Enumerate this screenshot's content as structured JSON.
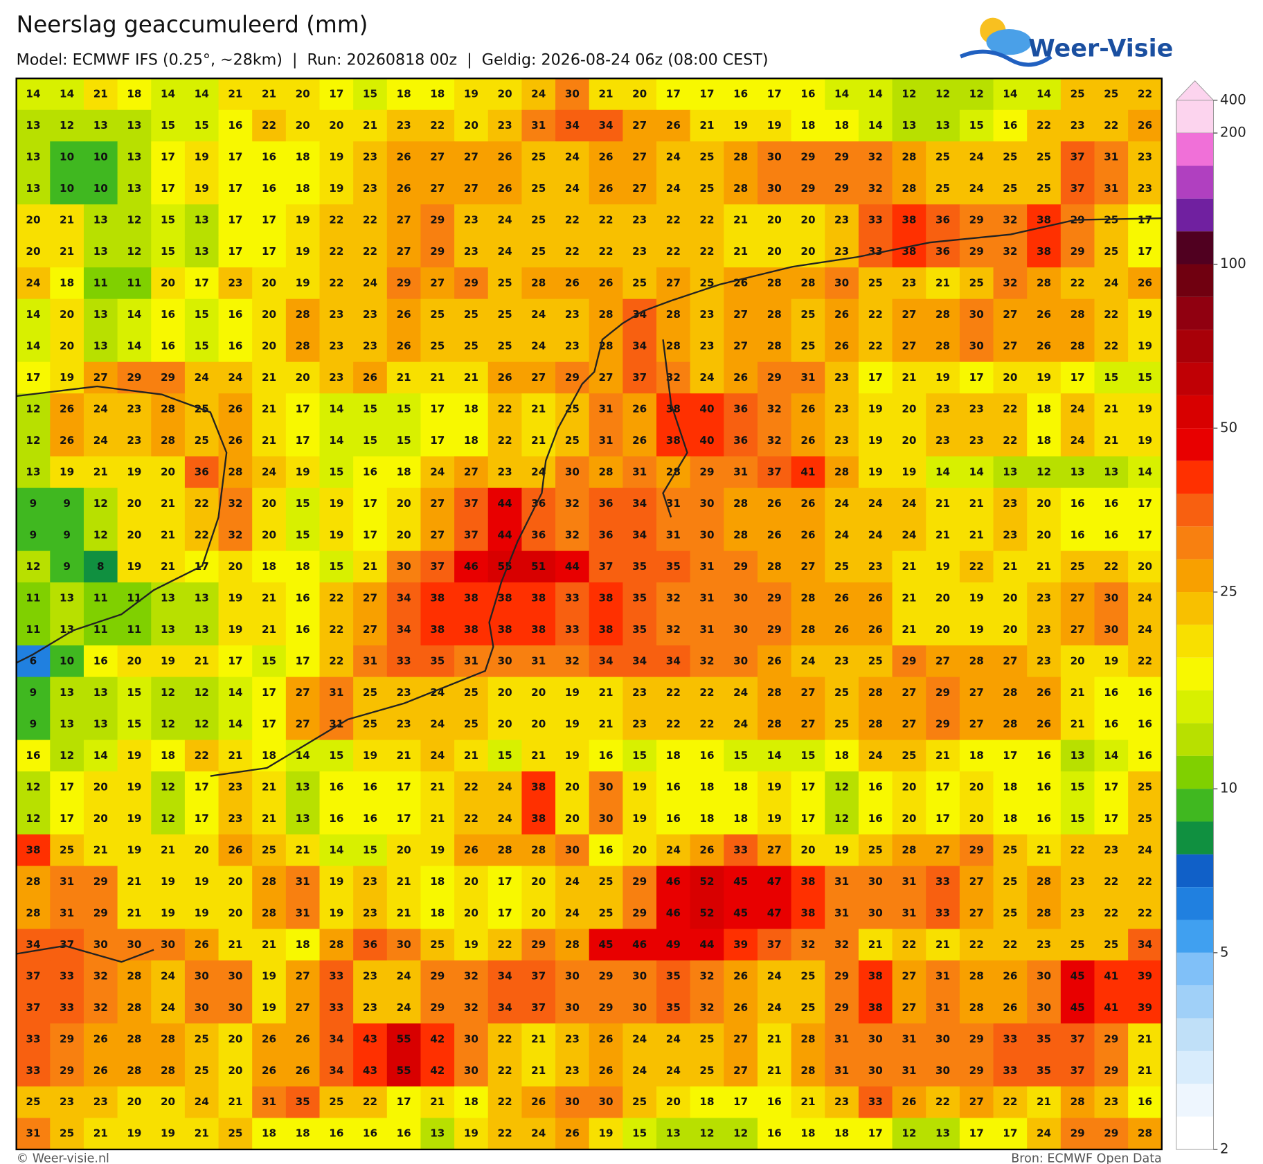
{
  "header": {
    "title": "Neerslag geaccumuleerd (mm)",
    "subtitle": "Model: ECMWF IFS (0.25°, ~28km)  |  Run: 20260818 00z  |  Geldig: 2026-08-24 06z (08:00 CEST)",
    "logo": "Weer-Visie"
  },
  "map": {
    "type": "value-grid",
    "grid": [
      [
        14,
        14,
        21,
        18,
        14,
        14,
        21,
        21,
        20,
        17,
        15,
        18,
        18,
        19,
        20,
        24,
        30,
        21,
        20,
        17,
        17,
        16,
        17,
        16,
        14,
        14,
        12,
        12,
        12,
        14,
        14,
        25,
        25,
        22
      ],
      [
        13,
        12,
        13,
        13,
        15,
        15,
        16,
        22,
        20,
        20,
        21,
        23,
        22,
        20,
        23,
        31,
        34,
        34,
        27,
        26,
        21,
        19,
        19,
        18,
        18,
        14,
        13,
        13,
        15,
        16,
        22,
        23,
        22,
        26
      ],
      [
        13,
        10,
        10,
        13,
        17,
        19,
        17,
        16,
        18,
        19,
        23,
        26,
        27,
        27,
        26,
        25,
        24,
        26,
        27,
        24,
        25,
        28,
        30,
        29,
        29,
        32,
        28,
        25,
        24,
        25,
        25,
        37,
        31,
        23
      ],
      [
        13,
        10,
        10,
        13,
        17,
        19,
        17,
        16,
        18,
        19,
        23,
        26,
        27,
        27,
        26,
        25,
        24,
        26,
        27,
        24,
        25,
        28,
        30,
        29,
        29,
        32,
        28,
        25,
        24,
        25,
        25,
        37,
        31,
        23
      ],
      [
        20,
        21,
        13,
        12,
        15,
        13,
        17,
        17,
        19,
        22,
        22,
        27,
        29,
        23,
        24,
        25,
        22,
        22,
        23,
        22,
        22,
        21,
        20,
        20,
        23,
        33,
        38,
        36,
        29,
        32,
        38,
        29,
        25,
        17
      ],
      [
        20,
        21,
        13,
        12,
        15,
        13,
        17,
        17,
        19,
        22,
        22,
        27,
        29,
        23,
        24,
        25,
        22,
        22,
        23,
        22,
        22,
        21,
        20,
        20,
        23,
        33,
        38,
        36,
        29,
        32,
        38,
        29,
        25,
        17
      ],
      [
        24,
        18,
        11,
        11,
        20,
        17,
        23,
        20,
        19,
        22,
        24,
        29,
        27,
        29,
        25,
        28,
        26,
        26,
        25,
        27,
        25,
        26,
        28,
        28,
        30,
        25,
        23,
        21,
        25,
        32,
        28,
        22,
        24,
        26
      ],
      [
        14,
        20,
        13,
        14,
        16,
        15,
        16,
        20,
        28,
        23,
        23,
        26,
        25,
        25,
        25,
        24,
        23,
        28,
        34,
        28,
        23,
        27,
        28,
        25,
        26,
        22,
        27,
        28,
        30,
        27,
        26,
        28,
        22,
        19
      ],
      [
        14,
        20,
        13,
        14,
        16,
        15,
        16,
        20,
        28,
        23,
        23,
        26,
        25,
        25,
        25,
        24,
        23,
        28,
        34,
        28,
        23,
        27,
        28,
        25,
        26,
        22,
        27,
        28,
        30,
        27,
        26,
        28,
        22,
        19
      ],
      [
        17,
        19,
        27,
        29,
        29,
        24,
        24,
        21,
        20,
        23,
        26,
        21,
        21,
        21,
        26,
        27,
        29,
        27,
        37,
        32,
        24,
        26,
        29,
        31,
        23,
        17,
        21,
        19,
        17,
        20,
        19,
        17,
        15,
        15
      ],
      [
        12,
        26,
        24,
        23,
        28,
        25,
        26,
        21,
        17,
        14,
        15,
        15,
        17,
        18,
        22,
        21,
        25,
        31,
        26,
        38,
        40,
        36,
        32,
        26,
        23,
        19,
        20,
        23,
        23,
        22,
        18,
        24,
        21,
        19
      ],
      [
        12,
        26,
        24,
        23,
        28,
        25,
        26,
        21,
        17,
        14,
        15,
        15,
        17,
        18,
        22,
        21,
        25,
        31,
        26,
        38,
        40,
        36,
        32,
        26,
        23,
        19,
        20,
        23,
        23,
        22,
        18,
        24,
        21,
        19
      ],
      [
        13,
        19,
        21,
        19,
        20,
        36,
        28,
        24,
        19,
        15,
        16,
        18,
        24,
        27,
        23,
        24,
        30,
        28,
        31,
        28,
        29,
        31,
        37,
        41,
        28,
        19,
        19,
        14,
        14,
        13,
        12,
        13,
        13,
        14
      ],
      [
        9,
        9,
        12,
        20,
        21,
        22,
        32,
        20,
        15,
        19,
        17,
        20,
        27,
        37,
        44,
        36,
        32,
        36,
        34,
        31,
        30,
        28,
        26,
        26,
        24,
        24,
        24,
        21,
        21,
        23,
        20,
        16,
        16,
        17
      ],
      [
        9,
        9,
        12,
        20,
        21,
        22,
        32,
        20,
        15,
        19,
        17,
        20,
        27,
        37,
        44,
        36,
        32,
        36,
        34,
        31,
        30,
        28,
        26,
        26,
        24,
        24,
        24,
        21,
        21,
        23,
        20,
        16,
        16,
        17
      ],
      [
        12,
        9,
        8,
        19,
        21,
        17,
        20,
        18,
        18,
        15,
        21,
        30,
        37,
        46,
        55,
        51,
        44,
        37,
        35,
        35,
        31,
        29,
        28,
        27,
        25,
        23,
        21,
        19,
        22,
        21,
        21,
        25,
        22,
        20
      ],
      [
        11,
        13,
        11,
        11,
        13,
        13,
        19,
        21,
        16,
        22,
        27,
        34,
        38,
        38,
        38,
        38,
        33,
        38,
        35,
        32,
        31,
        30,
        29,
        28,
        26,
        26,
        21,
        20,
        19,
        20,
        23,
        27,
        30,
        24
      ],
      [
        11,
        13,
        11,
        11,
        13,
        13,
        19,
        21,
        16,
        22,
        27,
        34,
        38,
        38,
        38,
        38,
        33,
        38,
        35,
        32,
        31,
        30,
        29,
        28,
        26,
        26,
        21,
        20,
        19,
        20,
        23,
        27,
        30,
        24
      ],
      [
        6,
        10,
        16,
        20,
        19,
        21,
        17,
        15,
        17,
        22,
        31,
        33,
        35,
        31,
        30,
        31,
        32,
        34,
        34,
        34,
        32,
        30,
        26,
        24,
        23,
        25,
        29,
        27,
        28,
        27,
        23,
        20,
        19,
        22
      ],
      [
        9,
        13,
        13,
        15,
        12,
        12,
        14,
        17,
        27,
        31,
        25,
        23,
        24,
        25,
        20,
        20,
        19,
        21,
        23,
        22,
        22,
        24,
        28,
        27,
        25,
        28,
        27,
        29,
        27,
        28,
        26,
        21,
        16,
        16
      ],
      [
        9,
        13,
        13,
        15,
        12,
        12,
        14,
        17,
        27,
        31,
        25,
        23,
        24,
        25,
        20,
        20,
        19,
        21,
        23,
        22,
        22,
        24,
        28,
        27,
        25,
        28,
        27,
        29,
        27,
        28,
        26,
        21,
        16,
        16
      ],
      [
        16,
        12,
        14,
        19,
        18,
        22,
        21,
        18,
        14,
        15,
        19,
        21,
        24,
        21,
        15,
        21,
        19,
        16,
        15,
        18,
        16,
        15,
        14,
        15,
        18,
        24,
        25,
        21,
        18,
        17,
        16,
        13,
        14,
        16
      ],
      [
        12,
        17,
        20,
        19,
        12,
        17,
        23,
        21,
        13,
        16,
        16,
        17,
        21,
        22,
        24,
        38,
        20,
        30,
        19,
        16,
        18,
        18,
        19,
        17,
        12,
        16,
        20,
        17,
        20,
        18,
        16,
        15,
        17,
        25
      ],
      [
        12,
        17,
        20,
        19,
        12,
        17,
        23,
        21,
        13,
        16,
        16,
        17,
        21,
        22,
        24,
        38,
        20,
        30,
        19,
        16,
        18,
        18,
        19,
        17,
        12,
        16,
        20,
        17,
        20,
        18,
        16,
        15,
        17,
        25
      ],
      [
        38,
        25,
        21,
        19,
        21,
        20,
        26,
        25,
        21,
        14,
        15,
        20,
        19,
        26,
        28,
        28,
        30,
        16,
        20,
        24,
        26,
        33,
        27,
        20,
        19,
        25,
        28,
        27,
        29,
        25,
        21,
        22,
        23,
        24
      ],
      [
        28,
        31,
        29,
        21,
        19,
        19,
        20,
        28,
        31,
        19,
        23,
        21,
        18,
        20,
        17,
        20,
        24,
        25,
        29,
        46,
        52,
        45,
        47,
        38,
        31,
        30,
        31,
        33,
        27,
        25,
        28,
        23,
        22,
        22
      ],
      [
        28,
        31,
        29,
        21,
        19,
        19,
        20,
        28,
        31,
        19,
        23,
        21,
        18,
        20,
        17,
        20,
        24,
        25,
        29,
        46,
        52,
        45,
        47,
        38,
        31,
        30,
        31,
        33,
        27,
        25,
        28,
        23,
        22,
        22
      ],
      [
        34,
        37,
        30,
        30,
        30,
        26,
        21,
        21,
        18,
        28,
        36,
        30,
        25,
        19,
        22,
        29,
        28,
        45,
        46,
        49,
        44,
        39,
        37,
        32,
        32,
        21,
        22,
        21,
        22,
        22,
        23,
        25,
        25,
        34
      ],
      [
        37,
        33,
        32,
        28,
        24,
        30,
        30,
        19,
        27,
        33,
        23,
        24,
        29,
        32,
        34,
        37,
        30,
        29,
        30,
        35,
        32,
        26,
        24,
        25,
        29,
        38,
        27,
        31,
        28,
        26,
        30,
        45,
        41,
        39
      ],
      [
        37,
        33,
        32,
        28,
        24,
        30,
        30,
        19,
        27,
        33,
        23,
        24,
        29,
        32,
        34,
        37,
        30,
        29,
        30,
        35,
        32,
        26,
        24,
        25,
        29,
        38,
        27,
        31,
        28,
        26,
        30,
        45,
        41,
        39
      ],
      [
        33,
        29,
        26,
        28,
        28,
        25,
        20,
        26,
        26,
        34,
        43,
        55,
        42,
        30,
        22,
        21,
        23,
        26,
        24,
        24,
        25,
        27,
        21,
        28,
        31,
        30,
        31,
        30,
        29,
        33,
        35,
        37,
        29,
        21
      ],
      [
        33,
        29,
        26,
        28,
        28,
        25,
        20,
        26,
        26,
        34,
        43,
        55,
        42,
        30,
        22,
        21,
        23,
        26,
        24,
        24,
        25,
        27,
        21,
        28,
        31,
        30,
        31,
        30,
        29,
        33,
        35,
        37,
        29,
        21
      ],
      [
        25,
        23,
        23,
        20,
        20,
        24,
        21,
        31,
        35,
        25,
        22,
        17,
        21,
        18,
        22,
        26,
        30,
        30,
        25,
        20,
        18,
        17,
        16,
        21,
        23,
        33,
        26,
        22,
        27,
        22,
        21,
        28,
        23,
        16
      ],
      [
        31,
        25,
        21,
        19,
        19,
        21,
        25,
        18,
        18,
        16,
        16,
        16,
        13,
        19,
        22,
        24,
        26,
        19,
        15,
        13,
        12,
        12,
        16,
        18,
        18,
        17,
        12,
        13,
        17,
        17,
        24,
        29,
        29,
        28
      ]
    ]
  },
  "colorbar": {
    "colors": [
      "#fcd4ee",
      "#f070d8",
      "#b040c0",
      "#7020a0",
      "#500020",
      "#700010",
      "#900010",
      "#a80008",
      "#c00005",
      "#d80000",
      "#e80000",
      "#ff3000",
      "#f86010",
      "#f88010",
      "#f8a000",
      "#f8c000",
      "#f8e000",
      "#f8f800",
      "#d8f000",
      "#b8e000",
      "#80d000",
      "#40b820",
      "#109040",
      "#1060c8",
      "#2080e0",
      "#40a0f0",
      "#80c0f8",
      "#a0d0f8",
      "#c0e0f8",
      "#d8ecfc",
      "#eef6fe",
      "#ffffff"
    ],
    "ticks": [
      2,
      5,
      10,
      25,
      50,
      100,
      200,
      400
    ]
  },
  "footer": {
    "left": "© Weer-visie.nl",
    "right": "Bron: ECMWF Open Data"
  }
}
